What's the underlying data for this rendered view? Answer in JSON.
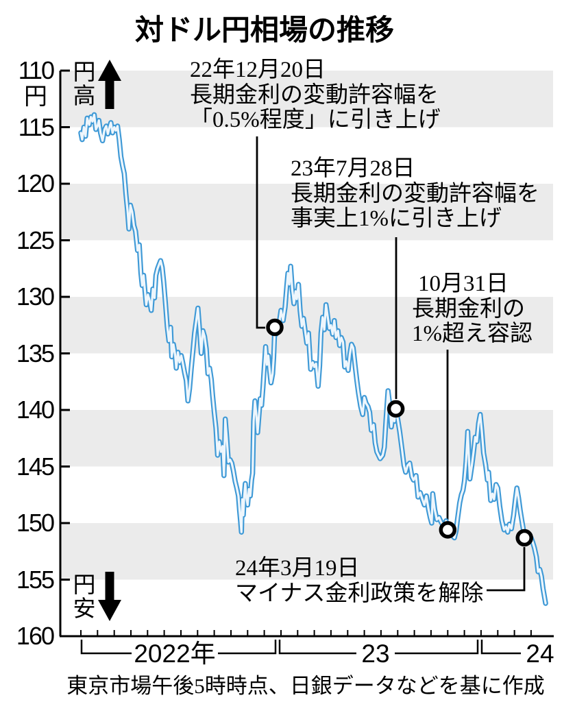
{
  "title": "対ドル円相場の推移",
  "y_axis": {
    "unit": "円",
    "tick_values": [
      110,
      115,
      120,
      125,
      130,
      135,
      140,
      145,
      150,
      155,
      160
    ],
    "high_label": "円高",
    "low_label": "円安"
  },
  "x_axis": {
    "year_labels": [
      "2022年",
      "23",
      "24"
    ]
  },
  "annotations": [
    {
      "lines": [
        "22年12月20日",
        "長期金利の変動許容幅を",
        "「0.5%程度」に引き上げ"
      ]
    },
    {
      "lines": [
        "23年7月28日",
        "長期金利の変動許容幅を",
        "事実上1%に引き上げ"
      ]
    },
    {
      "lines": [
        "10月31日",
        "長期金利の",
        "1%超え容認"
      ]
    },
    {
      "lines": [
        "24年3月19日",
        "マイナス金利政策を解除"
      ]
    }
  ],
  "source_note": "東京市場午後5時時点、日銀データなどを基に作成",
  "colors": {
    "line": "#3e99d6",
    "line_core": "#eef6fc",
    "band": "#ebebeb",
    "ink": "#000000"
  },
  "chart_data": {
    "type": "line",
    "title": "対ドル円相場の推移",
    "x_unit": "months since 2022-01-01",
    "y_unit": "円/ドル",
    "y_axis_inverted": true,
    "ylim": [
      110,
      160
    ],
    "grid": "alternating horizontal bands",
    "legend": "none",
    "shaded_bands": [
      [
        110,
        115
      ],
      [
        120,
        125
      ],
      [
        130,
        135
      ],
      [
        140,
        145
      ],
      [
        150,
        155
      ]
    ],
    "months_tick_count": 28,
    "markers": [
      {
        "label": "22年12月20日 長期金利の変動許容幅を「0.5%程度」に引き上げ",
        "m": 11.63,
        "value": 132.7
      },
      {
        "label": "23年7月28日 長期金利の変動許容幅を事実上1%に引き上げ",
        "m": 18.89,
        "value": 139.9
      },
      {
        "label": "23年10月31日 長期金利の1%超え容認",
        "m": 22.0,
        "value": 150.6
      },
      {
        "label": "24年3月19日 マイナス金利政策を解除",
        "m": 26.6,
        "value": 151.3
      }
    ],
    "series": [
      {
        "name": "対ドル円相場",
        "points": [
          [
            0.0,
            115.5
          ],
          [
            0.08,
            116.1
          ],
          [
            0.18,
            115.0
          ],
          [
            0.28,
            115.8
          ],
          [
            0.38,
            114.2
          ],
          [
            0.5,
            114.8
          ],
          [
            0.6,
            114.1
          ],
          [
            0.7,
            114.5
          ],
          [
            0.8,
            113.9
          ],
          [
            0.9,
            115.2
          ],
          [
            1.0,
            114.9
          ],
          [
            1.08,
            114.4
          ],
          [
            1.18,
            115.5
          ],
          [
            1.3,
            116.2
          ],
          [
            1.42,
            115.2
          ],
          [
            1.52,
            114.9
          ],
          [
            1.62,
            115.6
          ],
          [
            1.72,
            115.0
          ],
          [
            1.8,
            114.6
          ],
          [
            1.9,
            115.5
          ],
          [
            2.0,
            115.0
          ],
          [
            2.1,
            115.3
          ],
          [
            2.2,
            114.9
          ],
          [
            2.3,
            116.1
          ],
          [
            2.4,
            117.6
          ],
          [
            2.5,
            118.4
          ],
          [
            2.6,
            119.1
          ],
          [
            2.7,
            120.9
          ],
          [
            2.8,
            122.4
          ],
          [
            2.88,
            124.0
          ],
          [
            2.97,
            121.9
          ],
          [
            3.08,
            122.5
          ],
          [
            3.18,
            123.7
          ],
          [
            3.28,
            124.2
          ],
          [
            3.4,
            125.9
          ],
          [
            3.5,
            125.4
          ],
          [
            3.6,
            127.9
          ],
          [
            3.68,
            129.0
          ],
          [
            3.76,
            128.1
          ],
          [
            3.85,
            129.6
          ],
          [
            3.92,
            130.7
          ],
          [
            4.02,
            129.8
          ],
          [
            4.12,
            130.3
          ],
          [
            4.22,
            131.2
          ],
          [
            4.32,
            129.3
          ],
          [
            4.42,
            130.1
          ],
          [
            4.5,
            128.1
          ],
          [
            4.6,
            127.5
          ],
          [
            4.7,
            127.1
          ],
          [
            4.78,
            126.8
          ],
          [
            4.88,
            127.4
          ],
          [
            4.97,
            128.7
          ],
          [
            5.08,
            130.7
          ],
          [
            5.18,
            132.6
          ],
          [
            5.28,
            133.9
          ],
          [
            5.38,
            132.7
          ],
          [
            5.45,
            135.3
          ],
          [
            5.55,
            134.2
          ],
          [
            5.65,
            135.1
          ],
          [
            5.72,
            136.3
          ],
          [
            5.82,
            134.9
          ],
          [
            5.92,
            135.8
          ],
          [
            6.02,
            135.2
          ],
          [
            6.12,
            135.9
          ],
          [
            6.22,
            136.7
          ],
          [
            6.32,
            137.4
          ],
          [
            6.42,
            139.2
          ],
          [
            6.52,
            138.1
          ],
          [
            6.62,
            136.3
          ],
          [
            6.72,
            134.8
          ],
          [
            6.82,
            133.2
          ],
          [
            6.92,
            132.1
          ],
          [
            7.02,
            131.0
          ],
          [
            7.12,
            132.9
          ],
          [
            7.22,
            135.0
          ],
          [
            7.32,
            133.0
          ],
          [
            7.42,
            133.5
          ],
          [
            7.52,
            134.6
          ],
          [
            7.62,
            136.8
          ],
          [
            7.72,
            136.3
          ],
          [
            7.82,
            137.3
          ],
          [
            7.9,
            138.7
          ],
          [
            8.0,
            140.2
          ],
          [
            8.1,
            141.6
          ],
          [
            8.2,
            144.0
          ],
          [
            8.3,
            142.8
          ],
          [
            8.4,
            143.7
          ],
          [
            8.5,
            143.2
          ],
          [
            8.58,
            145.8
          ],
          [
            8.66,
            140.8
          ],
          [
            8.75,
            142.5
          ],
          [
            8.85,
            144.6
          ],
          [
            8.95,
            144.4
          ],
          [
            9.05,
            144.7
          ],
          [
            9.15,
            145.4
          ],
          [
            9.25,
            146.3
          ],
          [
            9.35,
            146.9
          ],
          [
            9.45,
            147.6
          ],
          [
            9.52,
            148.9
          ],
          [
            9.58,
            149.9
          ],
          [
            9.63,
            150.8
          ],
          [
            9.68,
            147.9
          ],
          [
            9.74,
            149.3
          ],
          [
            9.8,
            147.6
          ],
          [
            9.86,
            146.5
          ],
          [
            9.93,
            147.8
          ],
          [
            10.0,
            148.4
          ],
          [
            10.08,
            147.0
          ],
          [
            10.16,
            147.6
          ],
          [
            10.24,
            146.2
          ],
          [
            10.3,
            145.6
          ],
          [
            10.36,
            141.0
          ],
          [
            10.44,
            139.2
          ],
          [
            10.52,
            140.4
          ],
          [
            10.6,
            142.0
          ],
          [
            10.68,
            140.5
          ],
          [
            10.76,
            139.0
          ],
          [
            10.84,
            139.6
          ],
          [
            10.92,
            138.0
          ],
          [
            11.0,
            136.2
          ],
          [
            11.08,
            134.4
          ],
          [
            11.16,
            136.0
          ],
          [
            11.24,
            135.2
          ],
          [
            11.32,
            136.5
          ],
          [
            11.4,
            137.6
          ],
          [
            11.5,
            136.8
          ],
          [
            11.56,
            135.4
          ],
          [
            11.63,
            132.7
          ],
          [
            11.7,
            133.3
          ],
          [
            11.78,
            132.4
          ],
          [
            11.86,
            133.1
          ],
          [
            11.93,
            131.9
          ],
          [
            12.0,
            131.2
          ],
          [
            12.13,
            132.1
          ],
          [
            12.25,
            130.9
          ],
          [
            12.35,
            129.0
          ],
          [
            12.42,
            127.9
          ],
          [
            12.5,
            128.9
          ],
          [
            12.58,
            127.3
          ],
          [
            12.68,
            129.4
          ],
          [
            12.78,
            130.6
          ],
          [
            12.88,
            129.5
          ],
          [
            12.95,
            130.2
          ],
          [
            13.05,
            128.9
          ],
          [
            13.15,
            131.2
          ],
          [
            13.25,
            132.6
          ],
          [
            13.35,
            131.9
          ],
          [
            13.45,
            133.0
          ],
          [
            13.55,
            134.1
          ],
          [
            13.65,
            133.2
          ],
          [
            13.78,
            136.4
          ],
          [
            13.9,
            135.8
          ],
          [
            14.0,
            136.2
          ],
          [
            14.1,
            135.9
          ],
          [
            14.23,
            137.9
          ],
          [
            14.32,
            136.1
          ],
          [
            14.4,
            133.2
          ],
          [
            14.5,
            131.8
          ],
          [
            14.6,
            132.9
          ],
          [
            14.7,
            130.7
          ],
          [
            14.78,
            131.5
          ],
          [
            14.9,
            132.8
          ],
          [
            15.0,
            132.5
          ],
          [
            15.1,
            133.3
          ],
          [
            15.2,
            132.1
          ],
          [
            15.3,
            133.6
          ],
          [
            15.42,
            133.0
          ],
          [
            15.52,
            134.3
          ],
          [
            15.62,
            133.6
          ],
          [
            15.72,
            134.0
          ],
          [
            15.82,
            136.2
          ],
          [
            15.92,
            135.7
          ],
          [
            16.03,
            136.5
          ],
          [
            16.13,
            135.1
          ],
          [
            16.23,
            134.2
          ],
          [
            16.33,
            134.5
          ],
          [
            16.45,
            136.1
          ],
          [
            16.55,
            137.4
          ],
          [
            16.65,
            138.5
          ],
          [
            16.78,
            139.7
          ],
          [
            16.9,
            140.4
          ],
          [
            17.0,
            138.9
          ],
          [
            17.1,
            139.4
          ],
          [
            17.22,
            139.7
          ],
          [
            17.32,
            140.2
          ],
          [
            17.42,
            141.8
          ],
          [
            17.55,
            141.3
          ],
          [
            17.65,
            142.9
          ],
          [
            17.75,
            143.7
          ],
          [
            17.85,
            144.0
          ],
          [
            17.95,
            144.3
          ],
          [
            18.1,
            144.0
          ],
          [
            18.2,
            143.3
          ],
          [
            18.3,
            140.9
          ],
          [
            18.42,
            138.3
          ],
          [
            18.52,
            139.5
          ],
          [
            18.62,
            141.5
          ],
          [
            18.72,
            140.4
          ],
          [
            18.8,
            141.0
          ],
          [
            18.89,
            139.9
          ],
          [
            19.0,
            140.8
          ],
          [
            19.12,
            141.9
          ],
          [
            19.25,
            143.4
          ],
          [
            19.38,
            144.9
          ],
          [
            19.48,
            145.5
          ],
          [
            19.6,
            144.9
          ],
          [
            19.72,
            144.7
          ],
          [
            19.85,
            145.9
          ],
          [
            19.95,
            146.2
          ],
          [
            20.1,
            145.8
          ],
          [
            20.22,
            147.7
          ],
          [
            20.35,
            147.3
          ],
          [
            20.48,
            147.9
          ],
          [
            20.6,
            148.4
          ],
          [
            20.72,
            147.6
          ],
          [
            20.85,
            148.8
          ],
          [
            20.95,
            149.5
          ],
          [
            21.04,
            150.0
          ],
          [
            21.1,
            147.4
          ],
          [
            21.22,
            148.8
          ],
          [
            21.35,
            149.7
          ],
          [
            21.48,
            149.5
          ],
          [
            21.6,
            149.9
          ],
          [
            21.72,
            150.2
          ],
          [
            21.82,
            150.5
          ],
          [
            21.9,
            149.8
          ],
          [
            22.0,
            150.6
          ],
          [
            22.1,
            150.2
          ],
          [
            22.22,
            151.0
          ],
          [
            22.4,
            151.3
          ],
          [
            22.5,
            150.7
          ],
          [
            22.6,
            149.5
          ],
          [
            22.72,
            148.2
          ],
          [
            22.82,
            147.5
          ],
          [
            22.92,
            147.1
          ],
          [
            23.0,
            146.3
          ],
          [
            23.1,
            144.6
          ],
          [
            23.2,
            141.9
          ],
          [
            23.33,
            146.1
          ],
          [
            23.45,
            144.9
          ],
          [
            23.55,
            143.7
          ],
          [
            23.65,
            142.4
          ],
          [
            23.75,
            142.8
          ],
          [
            23.85,
            141.2
          ],
          [
            23.95,
            140.4
          ],
          [
            24.05,
            141.9
          ],
          [
            24.15,
            143.8
          ],
          [
            24.28,
            144.9
          ],
          [
            24.38,
            146.2
          ],
          [
            24.45,
            145.5
          ],
          [
            24.58,
            148.0
          ],
          [
            24.68,
            147.4
          ],
          [
            24.78,
            147.9
          ],
          [
            24.9,
            146.6
          ],
          [
            25.0,
            146.9
          ],
          [
            25.12,
            148.5
          ],
          [
            25.25,
            149.8
          ],
          [
            25.38,
            150.6
          ],
          [
            25.5,
            150.3
          ],
          [
            25.6,
            150.8
          ],
          [
            25.7,
            150.1
          ],
          [
            25.82,
            150.5
          ],
          [
            25.95,
            149.3
          ],
          [
            26.05,
            148.0
          ],
          [
            26.15,
            146.9
          ],
          [
            26.25,
            147.8
          ],
          [
            26.35,
            148.9
          ],
          [
            26.45,
            149.8
          ],
          [
            26.55,
            150.7
          ],
          [
            26.6,
            151.3
          ],
          [
            26.7,
            151.6
          ],
          [
            26.8,
            151.3
          ],
          [
            26.9,
            151.5
          ],
          [
            27.0,
            151.3
          ],
          [
            27.1,
            151.7
          ],
          [
            27.2,
            152.2
          ],
          [
            27.32,
            153.0
          ],
          [
            27.42,
            154.3
          ],
          [
            27.52,
            154.1
          ],
          [
            27.62,
            154.7
          ],
          [
            27.72,
            155.8
          ],
          [
            27.8,
            156.5
          ],
          [
            27.87,
            157.1
          ]
        ]
      }
    ]
  }
}
